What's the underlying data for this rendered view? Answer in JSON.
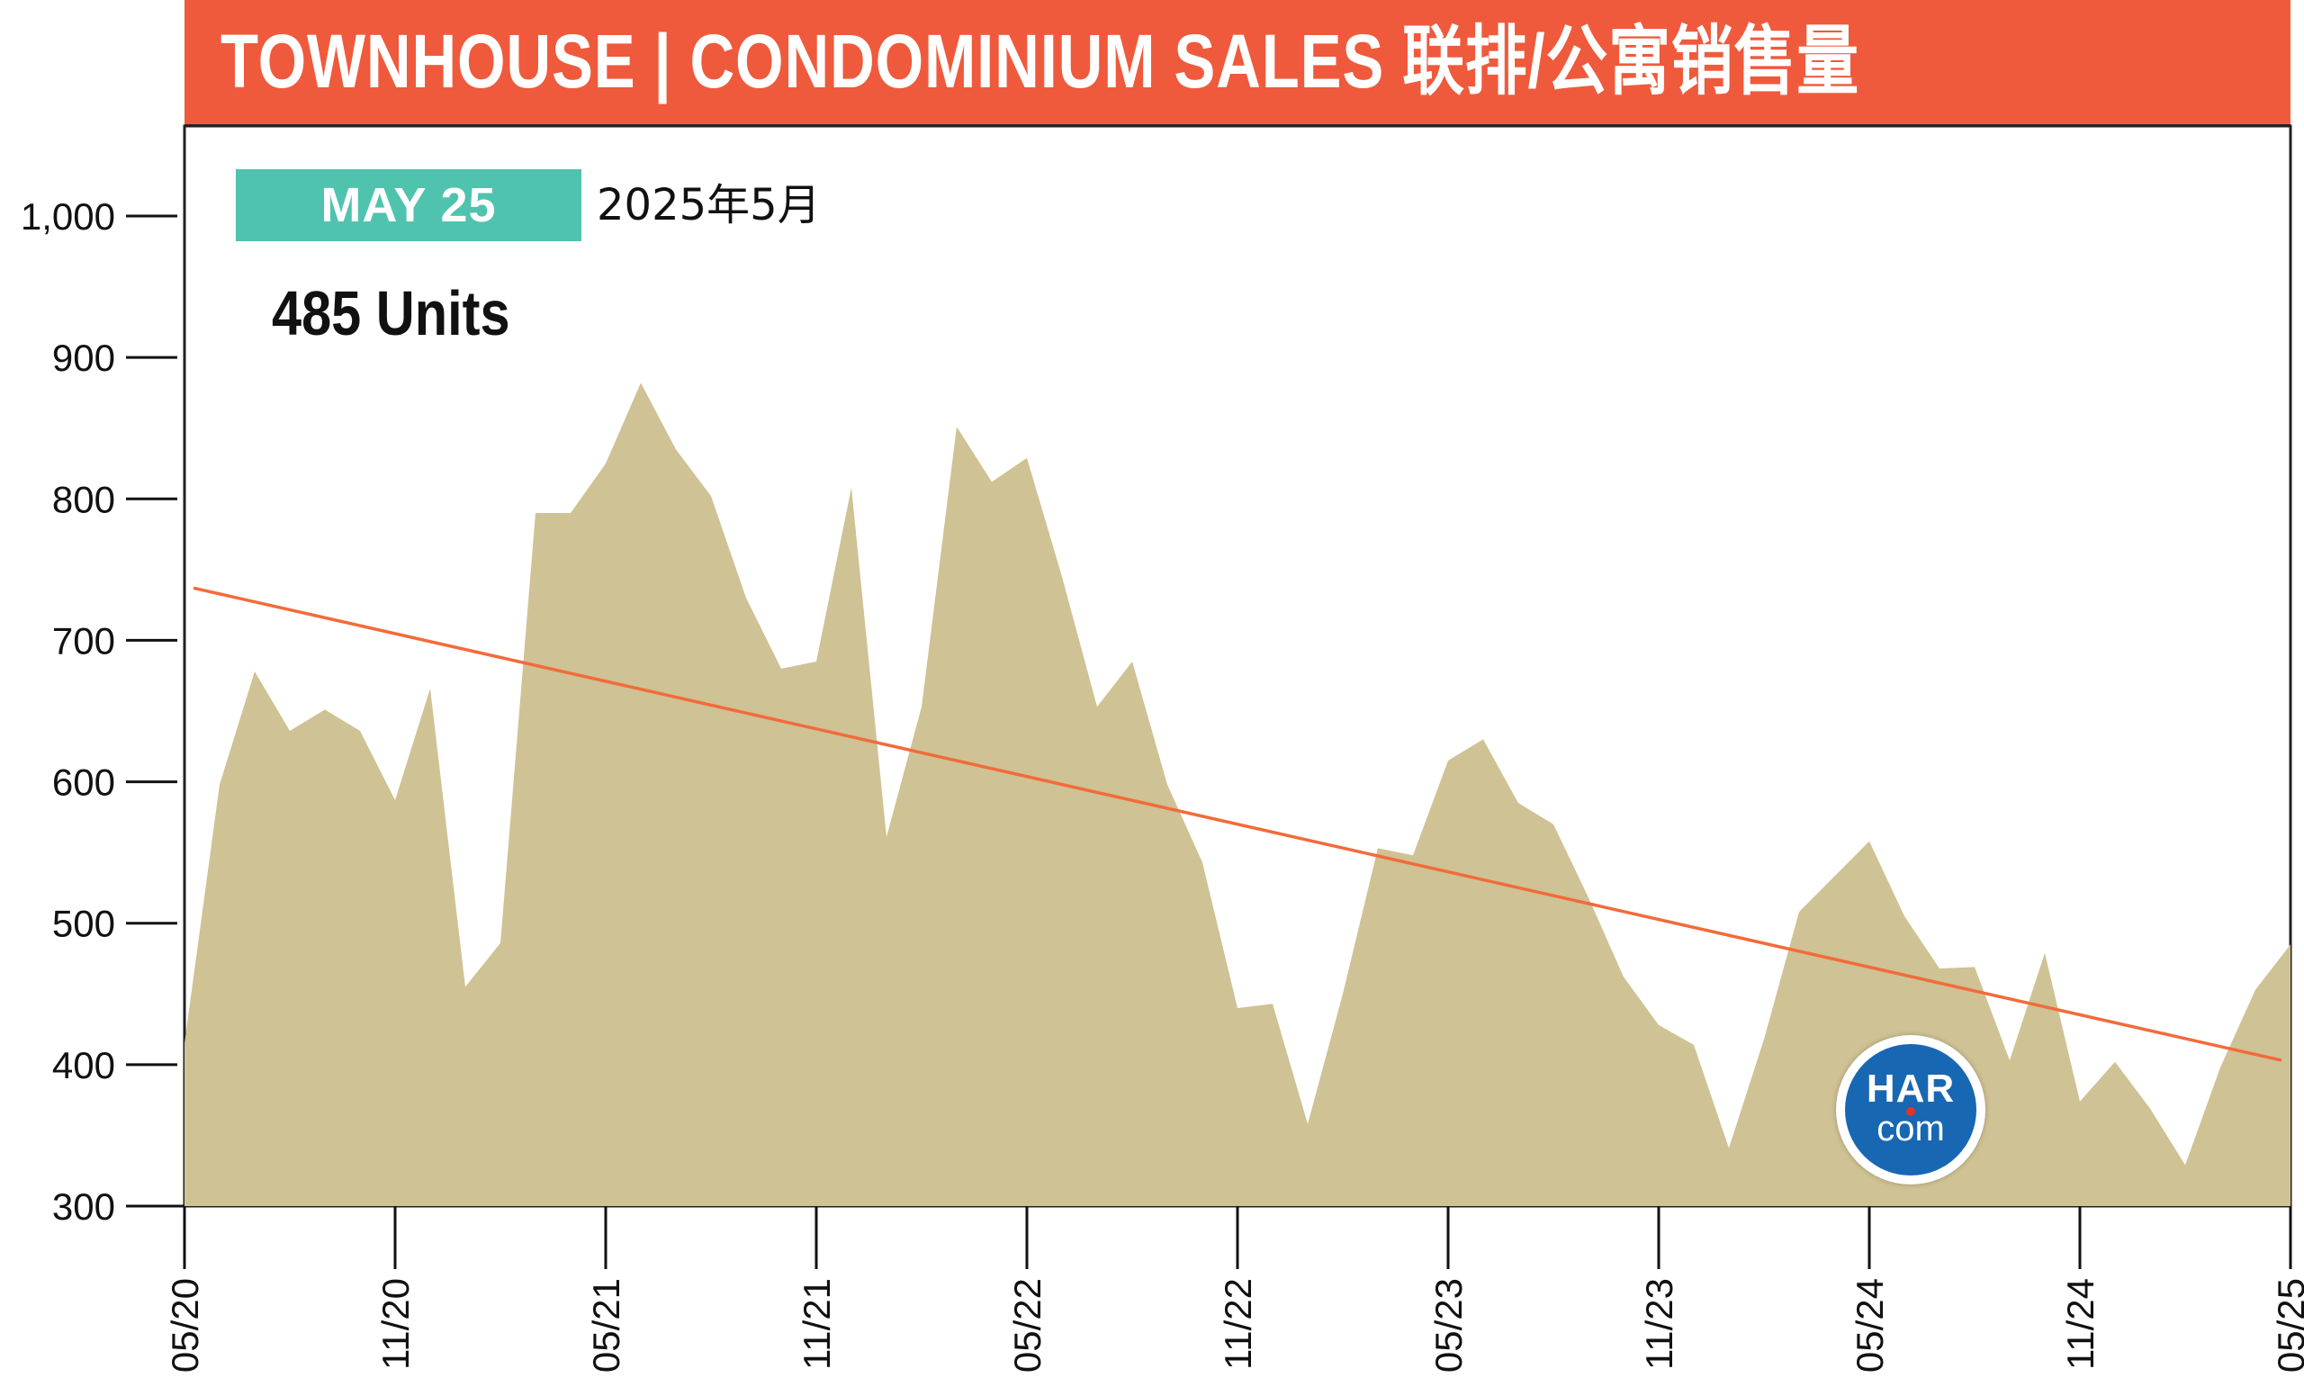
{
  "header": {
    "title": "TOWNHOUSE | CONDOMINIUM SALES  联排/公寓销售量"
  },
  "badge": {
    "label": "MAY 25",
    "sublabel": "2025年5月",
    "color": "#4fc3ae"
  },
  "headline": {
    "units": "485 Units"
  },
  "logo": {
    "name": "HAR",
    "suffix": "com",
    "color": "#1867b3"
  },
  "colors": {
    "header": "#ef5a3c",
    "area": "#cfc294",
    "trend": "#f26b3a"
  },
  "chart_data": {
    "type": "area",
    "title": "TOWNHOUSE | CONDOMINIUM SALES  联排/公寓销售量",
    "xlabel": "",
    "ylabel": "",
    "ylim": [
      300,
      1000
    ],
    "yticks": [
      300,
      400,
      500,
      600,
      700,
      800,
      900,
      1000
    ],
    "ytick_labels": [
      "300",
      "400",
      "500",
      "600",
      "700",
      "800",
      "900",
      "1,000"
    ],
    "xtick_labels": [
      "05/20",
      "11/20",
      "05/21",
      "11/21",
      "05/22",
      "11/22",
      "05/23",
      "11/23",
      "05/24",
      "11/24",
      "05/25"
    ],
    "grid": false,
    "series": [
      {
        "type": "area",
        "values": [
          415,
          598,
          678,
          636,
          651,
          636,
          587,
          666,
          455,
          486,
          790,
          790,
          825,
          882,
          835,
          802,
          730,
          680,
          685,
          808,
          561,
          653,
          851,
          812,
          829,
          745,
          653,
          685,
          598,
          543,
          440,
          443,
          358,
          450,
          553,
          548,
          615,
          630,
          585,
          570,
          518,
          462,
          428,
          414,
          341,
          418,
          508,
          533,
          558,
          505,
          468,
          469,
          403,
          479,
          374,
          402,
          369,
          329,
          398,
          453,
          485
        ]
      },
      {
        "type": "trend",
        "values": [
          737,
          403
        ]
      }
    ]
  }
}
